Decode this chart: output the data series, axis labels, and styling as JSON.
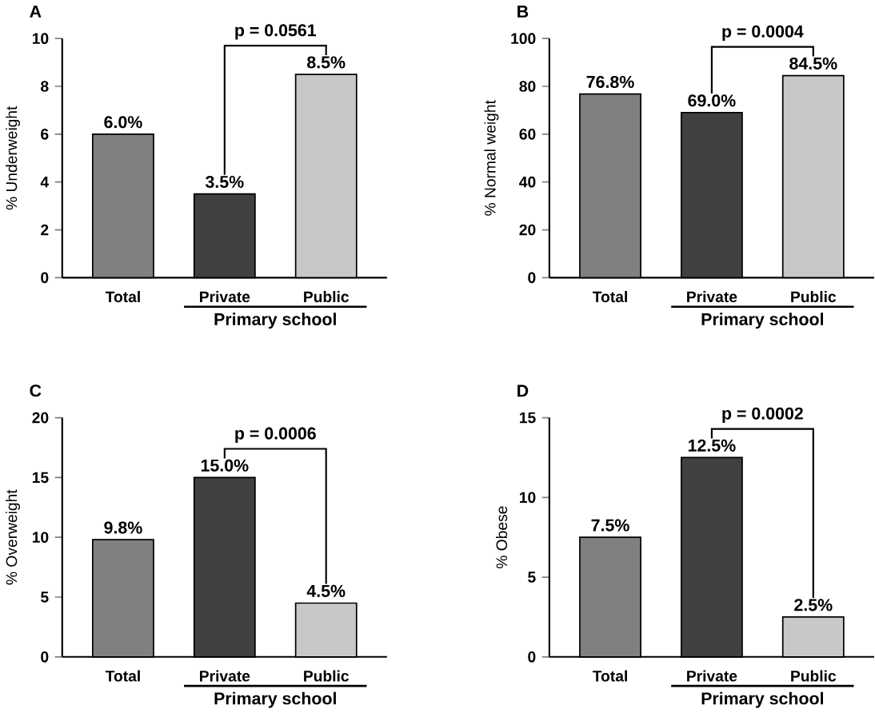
{
  "chart_data": [
    {
      "type": "bar",
      "title": "A",
      "ylabel": "% Underweight",
      "xlabel": "Primary school",
      "categories": [
        "Total",
        "Private",
        "Public"
      ],
      "values": [
        6.0,
        3.5,
        8.5
      ],
      "value_labels": [
        "6.0%",
        "3.5%",
        "8.5%"
      ],
      "colors": [
        "#808080",
        "#404040",
        "#c8c8c8"
      ],
      "ylim": [
        0,
        10
      ],
      "yticks": [
        0,
        2,
        4,
        6,
        8,
        10
      ],
      "annotations": [
        "p = 0.0561"
      ]
    },
    {
      "type": "bar",
      "title": "B",
      "ylabel": "% Normal weight",
      "xlabel": "Primary school",
      "categories": [
        "Total",
        "Private",
        "Public"
      ],
      "values": [
        76.8,
        69.0,
        84.5
      ],
      "value_labels": [
        "76.8%",
        "69.0%",
        "84.5%"
      ],
      "colors": [
        "#808080",
        "#404040",
        "#c8c8c8"
      ],
      "ylim": [
        0,
        100
      ],
      "yticks": [
        0,
        20,
        40,
        60,
        80,
        100
      ],
      "annotations": [
        "p = 0.0004"
      ]
    },
    {
      "type": "bar",
      "title": "C",
      "ylabel": "% Overweight",
      "xlabel": "Primary school",
      "categories": [
        "Total",
        "Private",
        "Public"
      ],
      "values": [
        9.8,
        15.0,
        4.5
      ],
      "value_labels": [
        "9.8%",
        "15.0%",
        "4.5%"
      ],
      "colors": [
        "#808080",
        "#404040",
        "#c8c8c8"
      ],
      "ylim": [
        0,
        20
      ],
      "yticks": [
        0,
        5,
        10,
        15,
        20
      ],
      "annotations": [
        "p = 0.0006"
      ]
    },
    {
      "type": "bar",
      "title": "D",
      "ylabel": "% Obese",
      "xlabel": "Primary school",
      "categories": [
        "Total",
        "Private",
        "Public"
      ],
      "values": [
        7.5,
        12.5,
        2.5
      ],
      "value_labels": [
        "7.5%",
        "12.5%",
        "2.5%"
      ],
      "colors": [
        "#808080",
        "#404040",
        "#c8c8c8"
      ],
      "ylim": [
        0,
        15
      ],
      "yticks": [
        0,
        5,
        10,
        15
      ],
      "annotations": [
        "p = 0.0002"
      ]
    }
  ]
}
